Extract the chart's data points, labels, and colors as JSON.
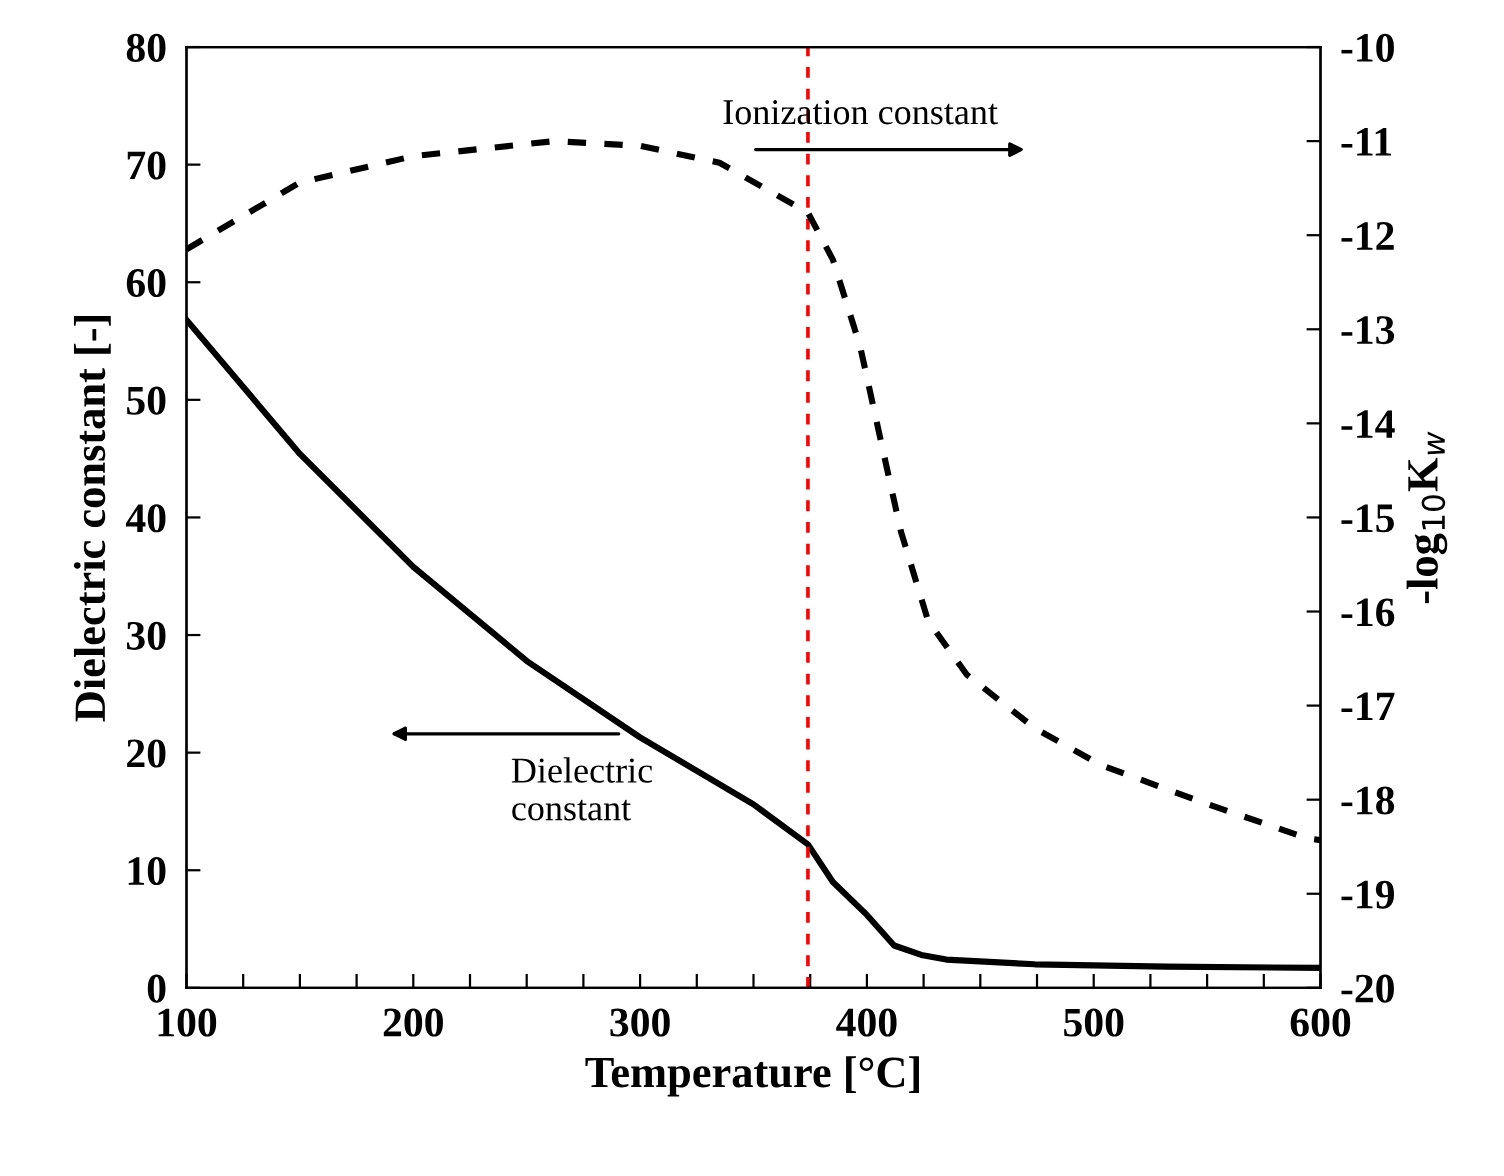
{
  "chart_data": {
    "type": "line",
    "xlabel": "Temperature [°C]",
    "ylabel": "Dielectric constant [-]",
    "y2label": "-log$_{10}$K$_{w}$",
    "xlim": [
      100,
      600
    ],
    "xticks": [
      100,
      {
        "value": 125,
        "label": null
      },
      {
        "value": 150,
        "label": null
      },
      {
        "value": 175,
        "label": null
      },
      200,
      {
        "value": 225,
        "label": null
      },
      {
        "value": 250,
        "label": null
      },
      {
        "value": 275,
        "label": null
      },
      300,
      {
        "value": 325,
        "label": null
      },
      {
        "value": 350,
        "label": null
      },
      {
        "value": 375,
        "label": null
      },
      400,
      {
        "value": 425,
        "label": null
      },
      {
        "value": 450,
        "label": null
      },
      {
        "value": 475,
        "label": null
      },
      500,
      {
        "value": 525,
        "label": null
      },
      {
        "value": 550,
        "label": null
      },
      {
        "value": 575,
        "label": null
      },
      600
    ],
    "ylim": [
      0,
      80
    ],
    "yticks": [
      0,
      10,
      20,
      30,
      40,
      50,
      60,
      70,
      80
    ],
    "y2lim": [
      -20,
      -10
    ],
    "y2ticks": [
      -20,
      -19,
      -18,
      -17,
      -16,
      -15,
      -14,
      -13,
      -12,
      -11,
      -10
    ],
    "grid": false,
    "legend": false,
    "series": [
      {
        "color": "#000000",
        "line_style": "solid",
        "x": [
          100,
          150,
          200,
          250,
          300,
          350,
          374,
          385,
          400,
          412,
          424,
          435,
          474,
          532,
          600
        ],
        "values": [
          56.8,
          45.4,
          35.8,
          27.8,
          21.3,
          15.6,
          12.2,
          9.0,
          6.2,
          3.6,
          2.8,
          2.4,
          2.0,
          1.8,
          1.7
        ]
      },
      {
        "color": "#000000",
        "line_style": "dashed",
        "axis": "y2",
        "x": [
          100,
          150,
          200,
          262,
          300,
          335,
          374,
          385,
          397,
          406,
          415,
          427,
          444,
          474,
          503,
          547,
          594,
          600
        ],
        "values": [
          -12.15,
          -11.44,
          -11.16,
          -11.0,
          -11.05,
          -11.23,
          -11.76,
          -12.26,
          -13.18,
          -14.17,
          -15.15,
          -16.1,
          -16.67,
          -17.24,
          -17.63,
          -18.02,
          -18.41,
          -18.43
        ]
      }
    ],
    "ref_lines": [
      {
        "axis": "x",
        "value": 374,
        "color": "#ff0000",
        "line_style": "dashed"
      }
    ],
    "annotations": [
      "Ionization constant",
      "Dielectric\nconstant"
    ]
  }
}
